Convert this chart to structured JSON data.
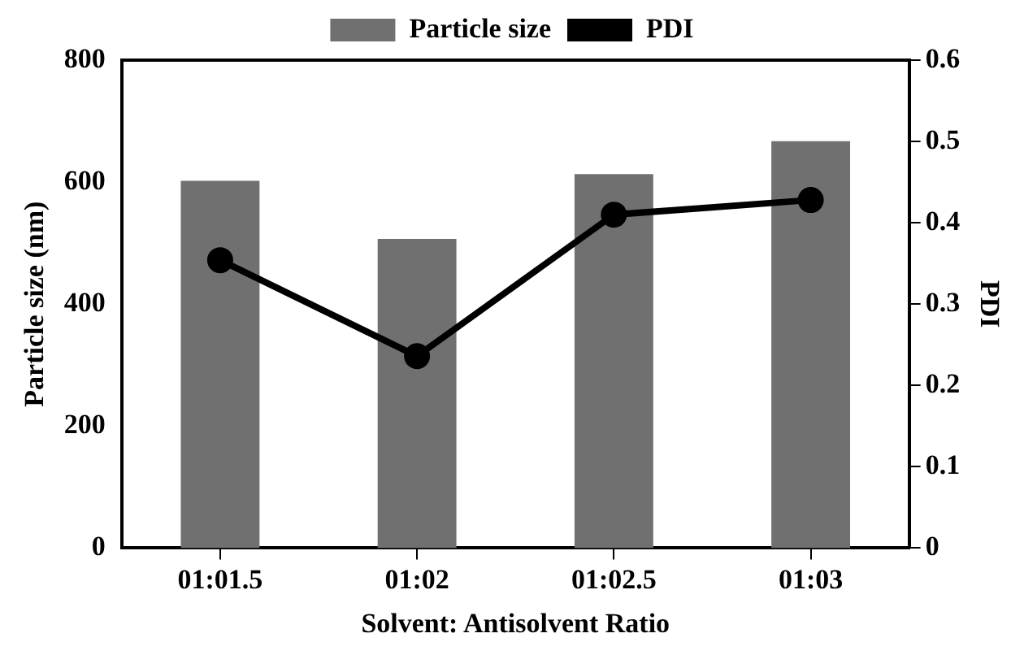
{
  "chart_data": {
    "type": "bar",
    "xlabel": "Solvent: Antisolvent Ratio",
    "ylabel": "Particle size (nm)",
    "y2label": "PDI",
    "categories": [
      "01:01.5",
      "01:02",
      "01:02.5",
      "01:03"
    ],
    "series": [
      {
        "name": "Particle size",
        "color": "#707070",
        "values": [
          602,
          507,
          613,
          667
        ]
      },
      {
        "name": "PDI",
        "type": "line",
        "axis": "y2",
        "color": "#000000",
        "values": [
          0.354,
          0.236,
          0.41,
          0.428
        ]
      }
    ],
    "ylim": [
      0,
      800
    ],
    "yticks": [
      0,
      200,
      400,
      600,
      800
    ],
    "y2lim": [
      0,
      0.6
    ],
    "y2ticks": [
      0,
      0.1,
      0.2,
      0.3,
      0.4,
      0.5,
      0.6
    ],
    "grid": false,
    "legend": "top",
    "marker": "circle",
    "line_style": "solid"
  }
}
